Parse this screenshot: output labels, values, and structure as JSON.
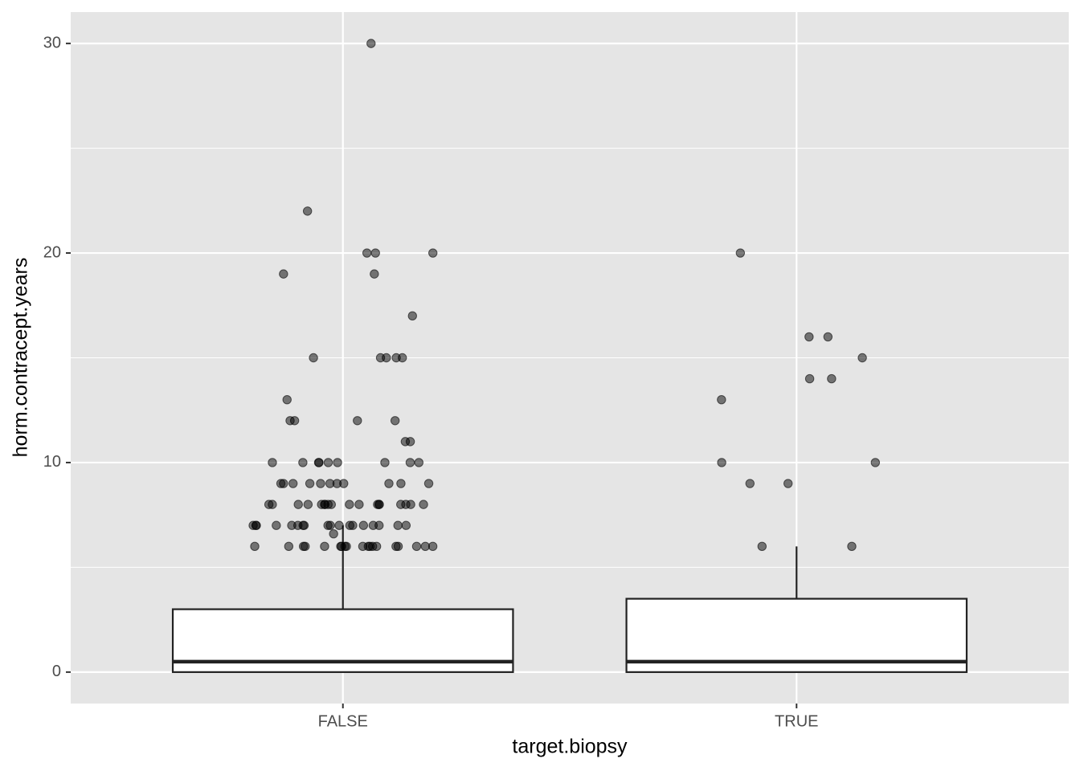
{
  "chart_data": {
    "type": "boxplot",
    "x_label": "target.biopsy",
    "y_label": "horm.contracept.years",
    "categories": [
      "FALSE",
      "TRUE"
    ],
    "boxes": [
      {
        "q1": 0,
        "median": 0.5,
        "q3": 3,
        "whisker_low": 0,
        "whisker_high": 7
      },
      {
        "q1": 0,
        "median": 0.5,
        "q3": 3.5,
        "whisker_low": 0,
        "whisker_high": 6
      }
    ],
    "points": [
      [
        30,
        22,
        20,
        20,
        20,
        19,
        19,
        17,
        15,
        15,
        15,
        15,
        15,
        13,
        12,
        12,
        12,
        12,
        11,
        11,
        10,
        10,
        10,
        10,
        10,
        10,
        10,
        10,
        10,
        9,
        9,
        9,
        9,
        9,
        9,
        9,
        9,
        9,
        9,
        9,
        8,
        8,
        8,
        8,
        8,
        8,
        8,
        8,
        8,
        8,
        8,
        8,
        8,
        8,
        8,
        8,
        8,
        8,
        7,
        7,
        7,
        7,
        7,
        7,
        7,
        7,
        7,
        7,
        7,
        7,
        7,
        7,
        7,
        7,
        7,
        7,
        6.6,
        6,
        6,
        6,
        6,
        6,
        6,
        6,
        6,
        6,
        6,
        6,
        6,
        6,
        6,
        6,
        6,
        6,
        6,
        6
      ],
      [
        20,
        16,
        16,
        15,
        14,
        14,
        13,
        10,
        10,
        9,
        9,
        6,
        6
      ]
    ],
    "point_color": "#000000",
    "ylim": [
      -1.5,
      31.5
    ],
    "yticks": [
      0,
      10,
      20,
      30
    ],
    "grid": true
  }
}
